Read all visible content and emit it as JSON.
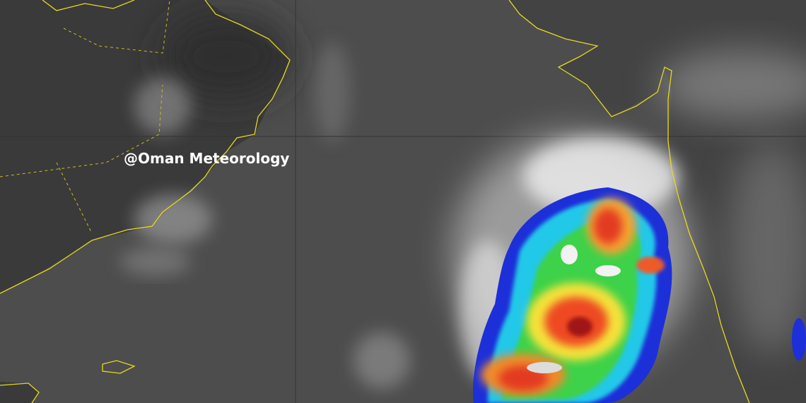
{
  "watermark": "@Oman Meteorology"
}
